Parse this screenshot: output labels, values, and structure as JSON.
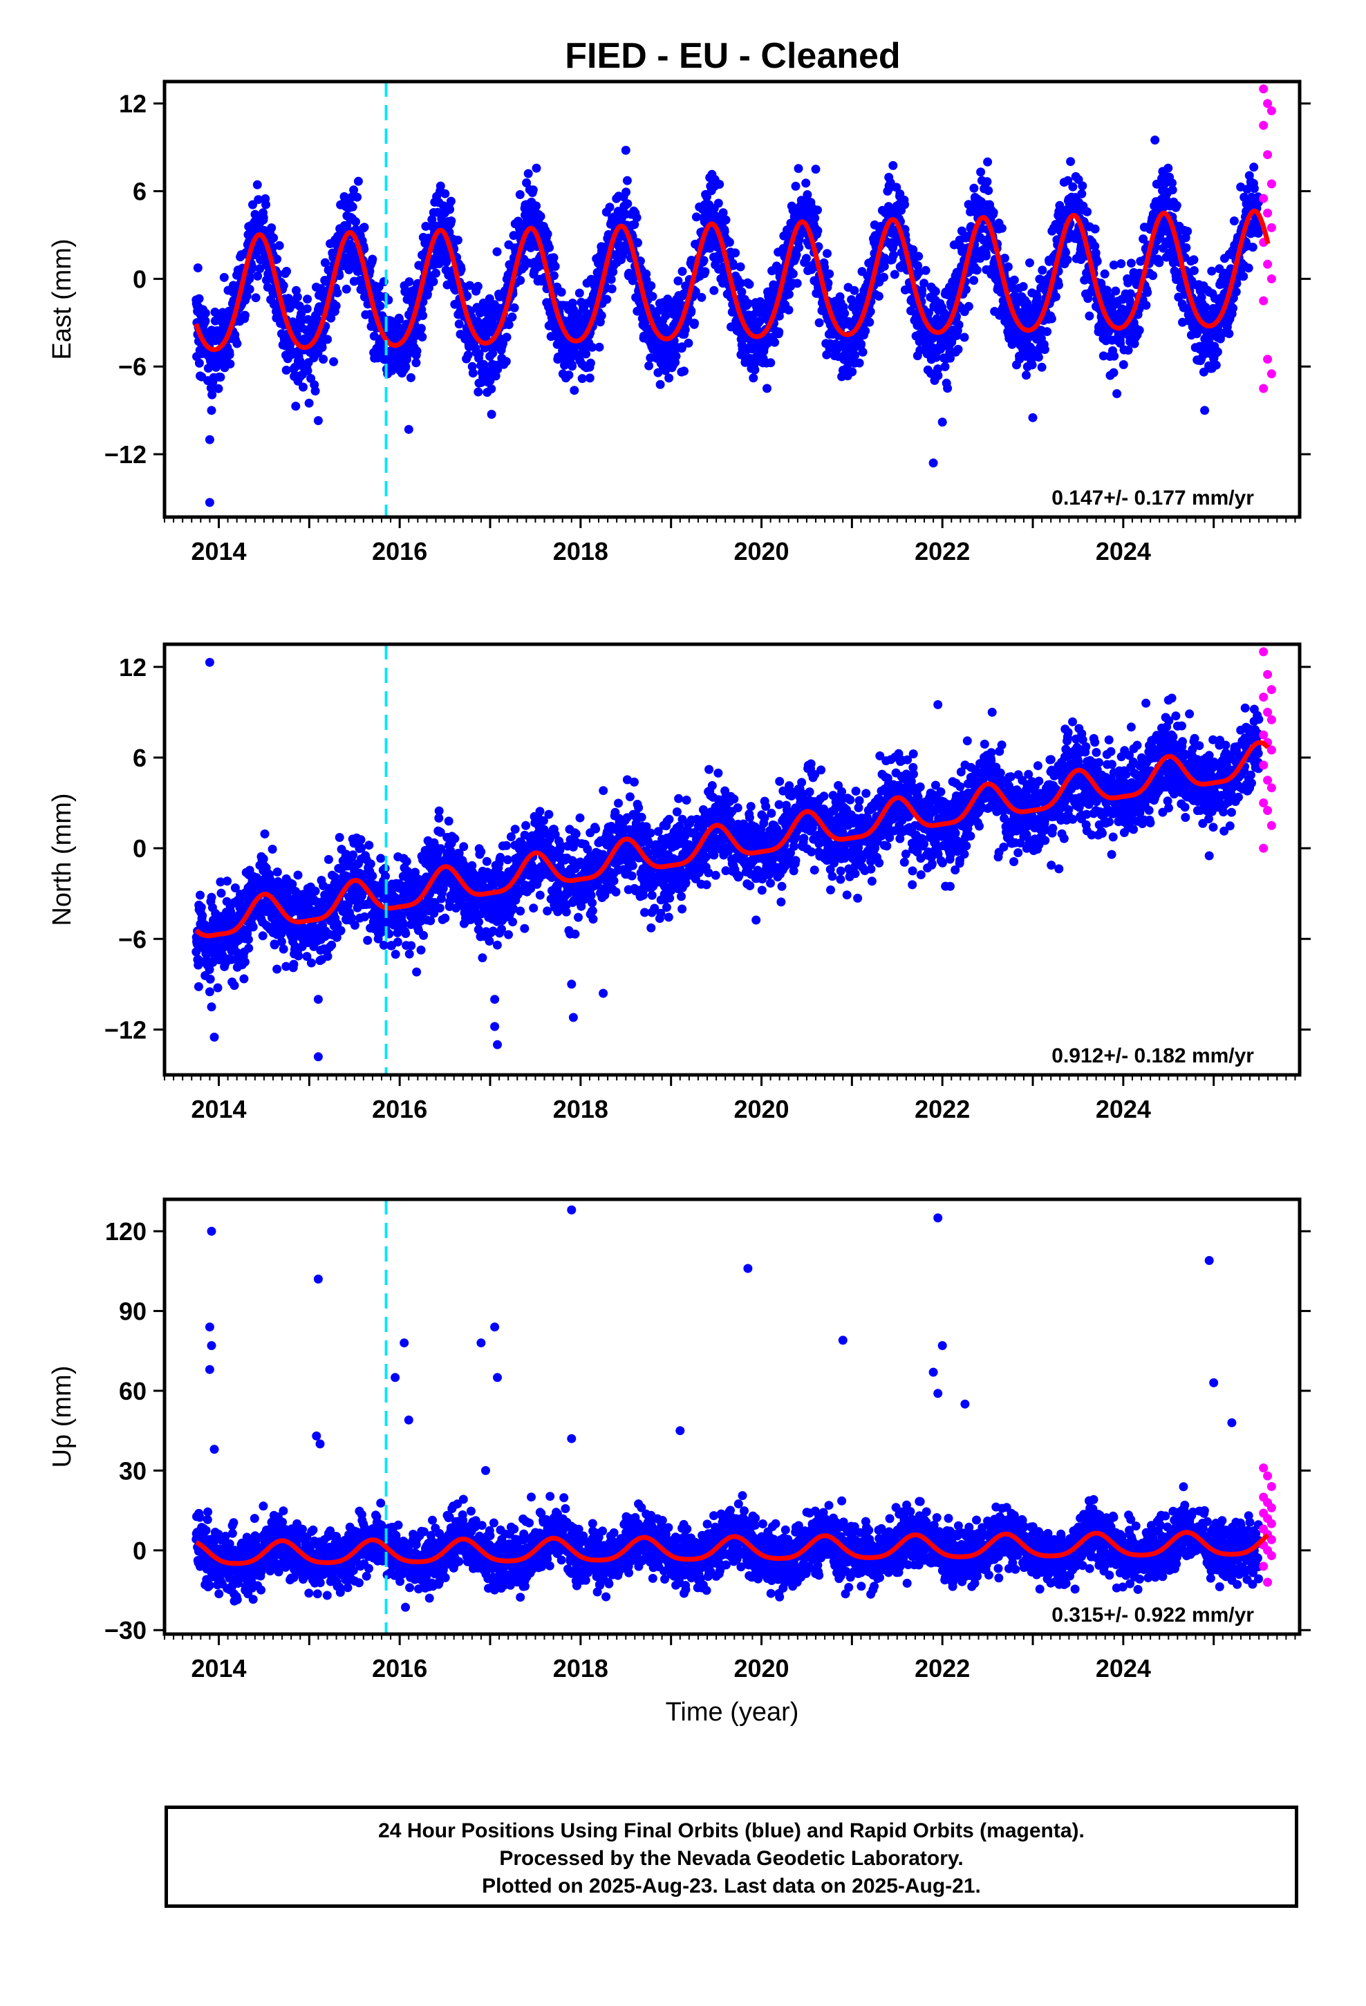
{
  "chart_data": [
    {
      "type": "scatter",
      "id": "east",
      "title": "FIED  - EU - Cleaned",
      "xlabel": "",
      "ylabel": "East (mm)",
      "xlim": [
        2013.4,
        2025.95
      ],
      "ylim": [
        -16.3,
        13.5
      ],
      "x_ticks": [
        2014,
        2016,
        2018,
        2020,
        2022,
        2024
      ],
      "y_ticks": [
        -12,
        -6,
        0,
        6,
        12
      ],
      "y_tick_labels": [
        "−12",
        "−6",
        "0",
        "6",
        "12"
      ],
      "grid": false,
      "rate_label": "0.147+/- 0.177 mm/yr",
      "equipment_change_x": 2015.85,
      "data_start": 2013.75,
      "final_end": 2025.5,
      "rapid_range": [
        2025.55,
        2025.64
      ],
      "model": {
        "offset": -0.6,
        "trend": 0.147,
        "annual_amp": 3.9,
        "annual_peak_year_fraction": 0.45,
        "semiannual_amp": 0.5,
        "reference_year": 2019.7
      },
      "series": [
        {
          "name": "Final Orbits",
          "color": "#0000ff",
          "marker": "circle",
          "scatter_sd": 1.5
        },
        {
          "name": "Rapid Orbits",
          "color": "#ff00ff",
          "marker": "circle"
        },
        {
          "name": "Fit",
          "color": "#ff0000",
          "marker": "line"
        }
      ],
      "outliers": [
        [
          2013.9,
          -15.3
        ],
        [
          2013.9,
          -11.0
        ],
        [
          2013.92,
          -9.0
        ],
        [
          2015.1,
          -9.7
        ],
        [
          2016.1,
          -10.3
        ],
        [
          2021.9,
          -12.6
        ],
        [
          2022.0,
          -9.8
        ],
        [
          2023.0,
          -9.5
        ],
        [
          2024.35,
          9.5
        ],
        [
          2024.9,
          -9.0
        ],
        [
          2018.5,
          8.8
        ],
        [
          2020.6,
          7.5
        ],
        [
          2022.5,
          8.0
        ]
      ],
      "rapid_points": [
        13.0,
        12.0,
        11.5,
        10.5,
        8.5,
        6.5,
        5.5,
        4.5,
        3.5,
        2.5,
        1.0,
        0.0,
        -1.5,
        -5.5,
        -6.5,
        -7.5
      ]
    },
    {
      "type": "scatter",
      "id": "north",
      "xlabel": "",
      "ylabel": "North (mm)",
      "xlim": [
        2013.4,
        2025.95
      ],
      "ylim": [
        -15,
        13.5
      ],
      "x_ticks": [
        2014,
        2016,
        2018,
        2020,
        2022,
        2024
      ],
      "y_ticks": [
        -12,
        -6,
        0,
        6,
        12
      ],
      "y_tick_labels": [
        "−12",
        "−6",
        "0",
        "6",
        "12"
      ],
      "grid": false,
      "rate_label": "0.912+/- 0.182 mm/yr",
      "equipment_change_x": 2015.85,
      "data_start": 2013.75,
      "final_end": 2025.5,
      "rapid_range": [
        2025.55,
        2025.64
      ],
      "model": {
        "offset": 0.3,
        "trend": 0.912,
        "annual_amp": 1.1,
        "annual_peak_year_fraction": 0.5,
        "semiannual_amp": 0.3,
        "reference_year": 2019.7
      },
      "series": [
        {
          "name": "Final Orbits",
          "color": "#0000ff",
          "marker": "circle",
          "scatter_sd": 1.4
        },
        {
          "name": "Rapid Orbits",
          "color": "#ff00ff",
          "marker": "circle"
        },
        {
          "name": "Fit",
          "color": "#ff0000",
          "marker": "line"
        }
      ],
      "outliers": [
        [
          2013.9,
          12.3
        ],
        [
          2013.9,
          -9.5
        ],
        [
          2013.92,
          -10.5
        ],
        [
          2013.95,
          -12.5
        ],
        [
          2015.1,
          -13.8
        ],
        [
          2015.1,
          -10.0
        ],
        [
          2017.05,
          -10.0
        ],
        [
          2017.05,
          -11.8
        ],
        [
          2017.08,
          -13.0
        ],
        [
          2017.9,
          -9.0
        ],
        [
          2017.92,
          -11.2
        ],
        [
          2018.25,
          -9.6
        ],
        [
          2021.95,
          9.5
        ],
        [
          2022.55,
          9.0
        ],
        [
          2024.25,
          9.6
        ],
        [
          2024.5,
          9.8
        ],
        [
          2024.95,
          -0.5
        ]
      ],
      "rapid_points": [
        13.0,
        11.5,
        10.5,
        10.0,
        9.0,
        8.5,
        7.5,
        7.0,
        6.5,
        5.5,
        4.5,
        4.0,
        3.0,
        2.5,
        1.5,
        0.0
      ]
    },
    {
      "type": "scatter",
      "id": "up",
      "xlabel": "Time (year)",
      "ylabel": "Up (mm)",
      "xlim": [
        2013.4,
        2025.95
      ],
      "ylim": [
        -31.5,
        132
      ],
      "x_ticks": [
        2014,
        2016,
        2018,
        2020,
        2022,
        2024
      ],
      "y_ticks": [
        -30,
        0,
        30,
        60,
        90,
        120
      ],
      "y_tick_labels": [
        "−30",
        "0",
        "30",
        "60",
        "90",
        "120"
      ],
      "grid": false,
      "rate_label": "0.315+/- 0.922 mm/yr",
      "equipment_change_x": 2015.85,
      "data_start": 2013.75,
      "final_end": 2025.5,
      "rapid_range": [
        2025.55,
        2025.64
      ],
      "model": {
        "offset": 0.2,
        "trend": 0.315,
        "annual_amp": 4.2,
        "annual_peak_year_fraction": 0.7,
        "semiannual_amp": 0.8,
        "reference_year": 2019.7
      },
      "series": [
        {
          "name": "Final Orbits",
          "color": "#0000ff",
          "marker": "circle",
          "scatter_sd": 5.5
        },
        {
          "name": "Rapid Orbits",
          "color": "#ff00ff",
          "marker": "circle"
        },
        {
          "name": "Fit",
          "color": "#ff0000",
          "marker": "line"
        }
      ],
      "outliers": [
        [
          2013.92,
          120
        ],
        [
          2013.9,
          84
        ],
        [
          2013.92,
          77
        ],
        [
          2013.9,
          68
        ],
        [
          2013.95,
          38
        ],
        [
          2015.1,
          102
        ],
        [
          2015.08,
          43
        ],
        [
          2015.12,
          40
        ],
        [
          2016.05,
          78
        ],
        [
          2015.95,
          65
        ],
        [
          2016.1,
          49
        ],
        [
          2016.9,
          78
        ],
        [
          2017.05,
          84
        ],
        [
          2017.08,
          65
        ],
        [
          2016.95,
          30
        ],
        [
          2017.9,
          128
        ],
        [
          2017.9,
          42
        ],
        [
          2019.85,
          106
        ],
        [
          2020.9,
          79
        ],
        [
          2021.95,
          125
        ],
        [
          2021.9,
          67
        ],
        [
          2022.0,
          77
        ],
        [
          2021.95,
          59
        ],
        [
          2022.25,
          55
        ],
        [
          2024.95,
          109
        ],
        [
          2025.0,
          63
        ],
        [
          2025.2,
          48
        ],
        [
          2019.1,
          45
        ]
      ],
      "rapid_points": [
        31,
        28,
        24,
        20,
        18,
        16,
        14,
        12,
        10,
        8,
        6,
        4,
        2,
        0,
        -2,
        -6,
        -12
      ]
    }
  ],
  "caption": {
    "line1": "24 Hour Positions Using Final Orbits (blue) and Rapid Orbits (magenta).",
    "line2": "Processed by the Nevada Geodetic Laboratory.",
    "line3": "Plotted on 2025-Aug-23. Last data on 2025-Aug-21."
  },
  "colors": {
    "final": "#0000ff",
    "rapid": "#ff00ff",
    "fit": "#ff0000",
    "equipment_change": "#00e5ff",
    "axis": "#000000"
  }
}
